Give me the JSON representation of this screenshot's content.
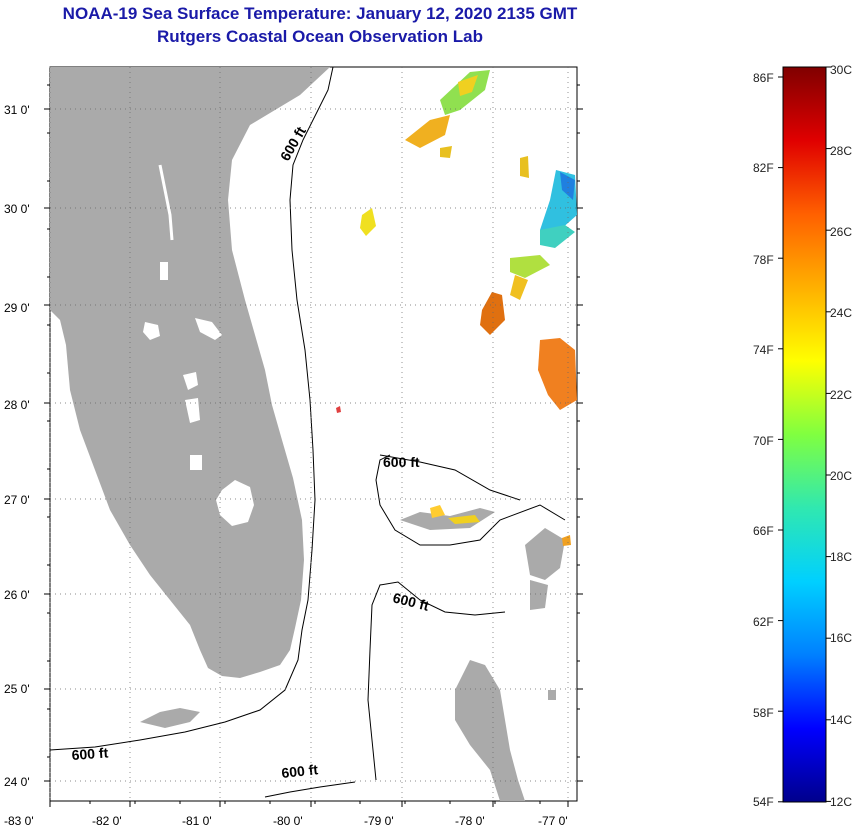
{
  "header": {
    "title": "NOAA-19 Sea Surface Temperature:  January 12, 2020 2135 GMT",
    "subtitle": "Rutgers Coastal Ocean Observation Lab"
  },
  "axes": {
    "lat_labels": [
      "31 0'",
      "30 0'",
      "29 0'",
      "28 0'",
      "27 0'",
      "26 0'",
      "25 0'",
      "24 0'"
    ],
    "lon_labels": [
      "-83 0'",
      "-82 0'",
      "-81 0'",
      "-80 0'",
      "-79 0'",
      "-78 0'",
      "-77 0'"
    ]
  },
  "contours": {
    "label": "600 ft"
  },
  "colorbar": {
    "fahrenheit": [
      "86F",
      "82F",
      "78F",
      "74F",
      "70F",
      "66F",
      "62F",
      "58F",
      "54F"
    ],
    "celsius": [
      "30C",
      "28C",
      "26C",
      "24C",
      "22C",
      "20C",
      "18C",
      "16C",
      "14C",
      "12C"
    ],
    "stops": [
      "#00008c",
      "#0000ff",
      "#0080ff",
      "#00d0ff",
      "#30e8b0",
      "#80ff40",
      "#ffff00",
      "#ffb000",
      "#ff6000",
      "#e00000",
      "#800000"
    ]
  },
  "colors": {
    "land": "#aaaaaa",
    "title": "#1a1aa8"
  }
}
